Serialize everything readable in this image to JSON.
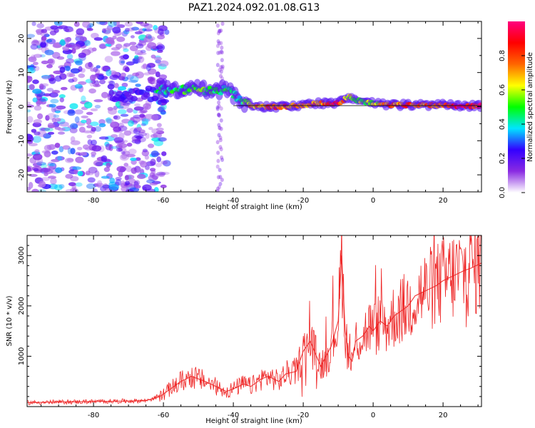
{
  "title": "PAZ1.2024.092.01.08.G13",
  "chart_data": [
    {
      "type": "heatmap",
      "xlabel": "Height of straight line (km)",
      "ylabel": "Frequency (Hz)",
      "xlim": [
        -99,
        31
      ],
      "ylim": [
        -25,
        25
      ],
      "x_ticks": [
        -80,
        -60,
        -40,
        -20,
        0,
        20
      ],
      "y_ticks": [
        -20,
        -10,
        0,
        10,
        20
      ],
      "colorbar": {
        "label": "Normalized spectral amplitude",
        "range": [
          0,
          1
        ],
        "ticks": [
          0.0,
          0.2,
          0.4,
          0.6,
          0.8
        ],
        "colors": [
          "#ffffff",
          "#8a2be2",
          "#3300ff",
          "#00e5ff",
          "#00ff00",
          "#ffff00",
          "#ff6600",
          "#ff0000",
          "#ff007f"
        ]
      },
      "ridge": {
        "x": [
          -62,
          -55,
          -50,
          -45,
          -42,
          -38,
          -35,
          -30,
          -25,
          -20,
          -15,
          -10,
          -7,
          -5,
          0,
          5,
          10,
          15,
          20,
          25,
          31
        ],
        "frequency": [
          5,
          5,
          5,
          4.5,
          5,
          2,
          0,
          0,
          0,
          0.5,
          1,
          1,
          3,
          2,
          1,
          0.5,
          0.5,
          0.5,
          0.5,
          0.2,
          0.2
        ],
        "amplitude": [
          0.45,
          0.5,
          0.55,
          0.5,
          0.5,
          0.4,
          0.75,
          0.8,
          0.85,
          0.7,
          0.8,
          0.9,
          0.6,
          0.55,
          0.6,
          0.8,
          0.85,
          0.8,
          0.85,
          0.95,
          0.95
        ]
      }
    },
    {
      "type": "line",
      "xlabel": "Height of straight line (km)",
      "ylabel": "SNR (10 * v/v)",
      "xlim": [
        -99,
        31
      ],
      "ylim": [
        0,
        3400
      ],
      "x_ticks": [
        -80,
        -60,
        -40,
        -20,
        0,
        20
      ],
      "y_ticks": [
        1000,
        2000,
        3000
      ],
      "series": [
        {
          "color": "#ee2222",
          "x": [
            -99,
            -90,
            -80,
            -70,
            -65,
            -61,
            -58,
            -55,
            -52,
            -50,
            -48,
            -45,
            -42,
            -40,
            -37,
            -35,
            -32,
            -30,
            -27,
            -25,
            -22,
            -20,
            -18,
            -15,
            -12,
            -10,
            -9,
            -8,
            -7,
            -6,
            -5,
            -3,
            -1,
            0,
            2,
            4,
            6,
            8,
            10,
            12,
            15,
            18,
            20,
            23,
            26,
            28,
            31
          ],
          "y": [
            80,
            90,
            100,
            110,
            120,
            200,
            350,
            500,
            600,
            550,
            500,
            400,
            300,
            350,
            450,
            400,
            550,
            600,
            500,
            650,
            700,
            1100,
            1300,
            800,
            1200,
            1700,
            3000,
            1500,
            1000,
            900,
            1300,
            1400,
            1600,
            1500,
            1700,
            1600,
            1800,
            1900,
            2000,
            2200,
            2300,
            2400,
            2500,
            2600,
            2700,
            2750,
            2850
          ]
        }
      ]
    }
  ]
}
